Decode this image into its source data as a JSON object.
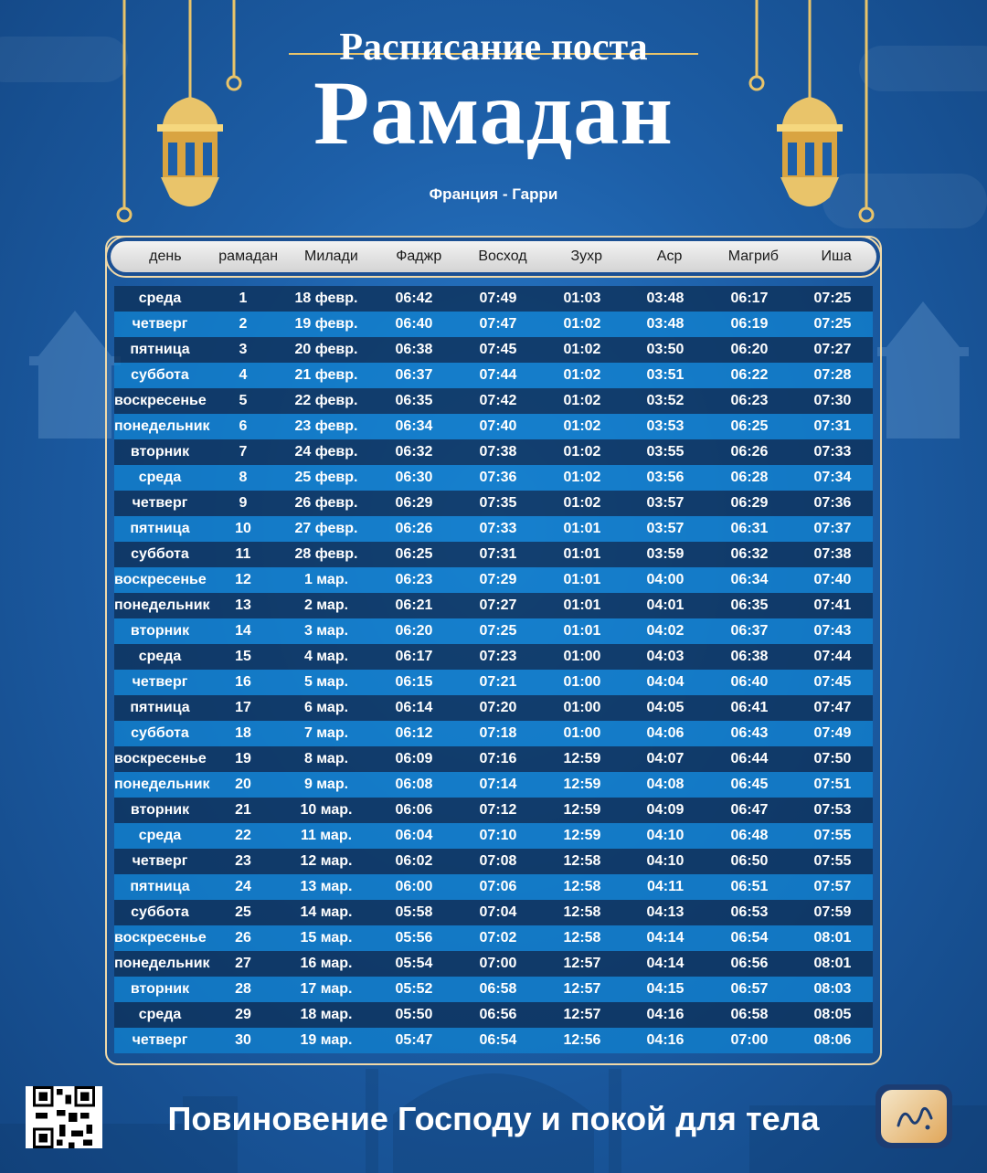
{
  "header": {
    "pretitle": "Расписание поста",
    "title": "Рамадан",
    "location": "Франция - Гарри"
  },
  "table": {
    "columns": [
      "день",
      "рамадан",
      "Милади",
      "Фаджр",
      "Восход",
      "Зухр",
      "Аср",
      "Магриб",
      "Иша"
    ],
    "rows": [
      [
        "среда",
        "1",
        "18 февр.",
        "06:42",
        "07:49",
        "01:03",
        "03:48",
        "06:17",
        "07:25"
      ],
      [
        "четверг",
        "2",
        "19 февр.",
        "06:40",
        "07:47",
        "01:02",
        "03:48",
        "06:19",
        "07:25"
      ],
      [
        "пятница",
        "3",
        "20 февр.",
        "06:38",
        "07:45",
        "01:02",
        "03:50",
        "06:20",
        "07:27"
      ],
      [
        "суббота",
        "4",
        "21 февр.",
        "06:37",
        "07:44",
        "01:02",
        "03:51",
        "06:22",
        "07:28"
      ],
      [
        "воскресенье",
        "5",
        "22 февр.",
        "06:35",
        "07:42",
        "01:02",
        "03:52",
        "06:23",
        "07:30"
      ],
      [
        "понедельник",
        "6",
        "23 февр.",
        "06:34",
        "07:40",
        "01:02",
        "03:53",
        "06:25",
        "07:31"
      ],
      [
        "вторник",
        "7",
        "24 февр.",
        "06:32",
        "07:38",
        "01:02",
        "03:55",
        "06:26",
        "07:33"
      ],
      [
        "среда",
        "8",
        "25 февр.",
        "06:30",
        "07:36",
        "01:02",
        "03:56",
        "06:28",
        "07:34"
      ],
      [
        "четверг",
        "9",
        "26 февр.",
        "06:29",
        "07:35",
        "01:02",
        "03:57",
        "06:29",
        "07:36"
      ],
      [
        "пятница",
        "10",
        "27 февр.",
        "06:26",
        "07:33",
        "01:01",
        "03:57",
        "06:31",
        "07:37"
      ],
      [
        "суббота",
        "11",
        "28 февр.",
        "06:25",
        "07:31",
        "01:01",
        "03:59",
        "06:32",
        "07:38"
      ],
      [
        "воскресенье",
        "12",
        "1 мар.",
        "06:23",
        "07:29",
        "01:01",
        "04:00",
        "06:34",
        "07:40"
      ],
      [
        "понедельник",
        "13",
        "2 мар.",
        "06:21",
        "07:27",
        "01:01",
        "04:01",
        "06:35",
        "07:41"
      ],
      [
        "вторник",
        "14",
        "3 мар.",
        "06:20",
        "07:25",
        "01:01",
        "04:02",
        "06:37",
        "07:43"
      ],
      [
        "среда",
        "15",
        "4 мар.",
        "06:17",
        "07:23",
        "01:00",
        "04:03",
        "06:38",
        "07:44"
      ],
      [
        "четверг",
        "16",
        "5 мар.",
        "06:15",
        "07:21",
        "01:00",
        "04:04",
        "06:40",
        "07:45"
      ],
      [
        "пятница",
        "17",
        "6 мар.",
        "06:14",
        "07:20",
        "01:00",
        "04:05",
        "06:41",
        "07:47"
      ],
      [
        "суббота",
        "18",
        "7 мар.",
        "06:12",
        "07:18",
        "01:00",
        "04:06",
        "06:43",
        "07:49"
      ],
      [
        "воскресенье",
        "19",
        "8 мар.",
        "06:09",
        "07:16",
        "12:59",
        "04:07",
        "06:44",
        "07:50"
      ],
      [
        "понедельник",
        "20",
        "9 мар.",
        "06:08",
        "07:14",
        "12:59",
        "04:08",
        "06:45",
        "07:51"
      ],
      [
        "вторник",
        "21",
        "10 мар.",
        "06:06",
        "07:12",
        "12:59",
        "04:09",
        "06:47",
        "07:53"
      ],
      [
        "среда",
        "22",
        "11 мар.",
        "06:04",
        "07:10",
        "12:59",
        "04:10",
        "06:48",
        "07:55"
      ],
      [
        "четверг",
        "23",
        "12 мар.",
        "06:02",
        "07:08",
        "12:58",
        "04:10",
        "06:50",
        "07:55"
      ],
      [
        "пятница",
        "24",
        "13 мар.",
        "06:00",
        "07:06",
        "12:58",
        "04:11",
        "06:51",
        "07:57"
      ],
      [
        "суббота",
        "25",
        "14 мар.",
        "05:58",
        "07:04",
        "12:58",
        "04:13",
        "06:53",
        "07:59"
      ],
      [
        "воскресенье",
        "26",
        "15 мар.",
        "05:56",
        "07:02",
        "12:58",
        "04:14",
        "06:54",
        "08:01"
      ],
      [
        "понедельник",
        "27",
        "16 мар.",
        "05:54",
        "07:00",
        "12:57",
        "04:14",
        "06:56",
        "08:01"
      ],
      [
        "вторник",
        "28",
        "17 мар.",
        "05:52",
        "06:58",
        "12:57",
        "04:15",
        "06:57",
        "08:03"
      ],
      [
        "среда",
        "29",
        "18 мар.",
        "05:50",
        "06:56",
        "12:57",
        "04:16",
        "06:58",
        "08:05"
      ],
      [
        "четверг",
        "30",
        "19 мар.",
        "05:47",
        "06:54",
        "12:56",
        "04:16",
        "07:00",
        "08:06"
      ]
    ],
    "row_colors": {
      "dark": "#0e325c",
      "light": "#1180cd"
    }
  },
  "footer": {
    "slogan": "Повиновение Господу и покой для тела",
    "qr_icon": "qr-code-icon",
    "logo_icon": "app-logo-icon"
  },
  "colors": {
    "accent_gold": "#e9c46a",
    "frame": "#f0d9a8",
    "background": "#1d5fa8"
  }
}
